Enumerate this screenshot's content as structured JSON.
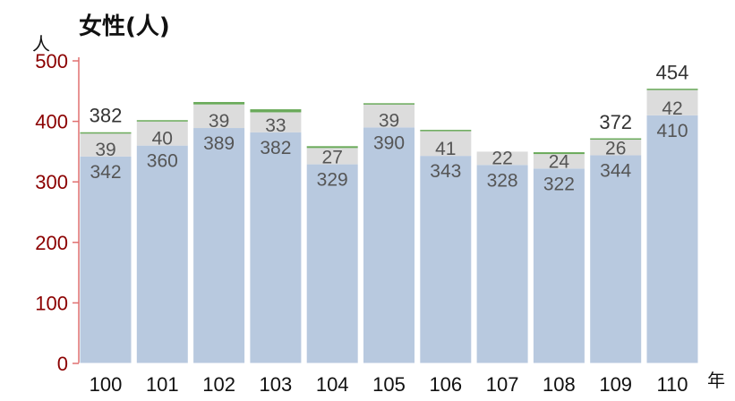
{
  "chart_data": {
    "type": "bar",
    "stacked": true,
    "title": "女性(人)",
    "ylabel": "人",
    "xlabel": "年",
    "ylim": [
      0,
      500
    ],
    "yticks": [
      0,
      100,
      200,
      300,
      400,
      500
    ],
    "categories": [
      "100",
      "101",
      "102",
      "103",
      "104",
      "105",
      "106",
      "107",
      "108",
      "109",
      "110"
    ],
    "series": [
      {
        "values": [
          342,
          360,
          389,
          382,
          329,
          390,
          343,
          328,
          322,
          344,
          410
        ],
        "color": "#b8c9df"
      },
      {
        "values": [
          39,
          40,
          39,
          33,
          27,
          39,
          41,
          22,
          24,
          26,
          42
        ],
        "color": "#dcdcdc"
      },
      {
        "values": [
          1,
          2,
          4,
          5,
          3,
          1,
          2,
          0,
          3,
          2,
          2
        ],
        "color": "#6aaa5a"
      }
    ],
    "totals": [
      382,
      null,
      null,
      null,
      null,
      null,
      null,
      null,
      null,
      372,
      454
    ],
    "axis_color": "#e07070"
  }
}
